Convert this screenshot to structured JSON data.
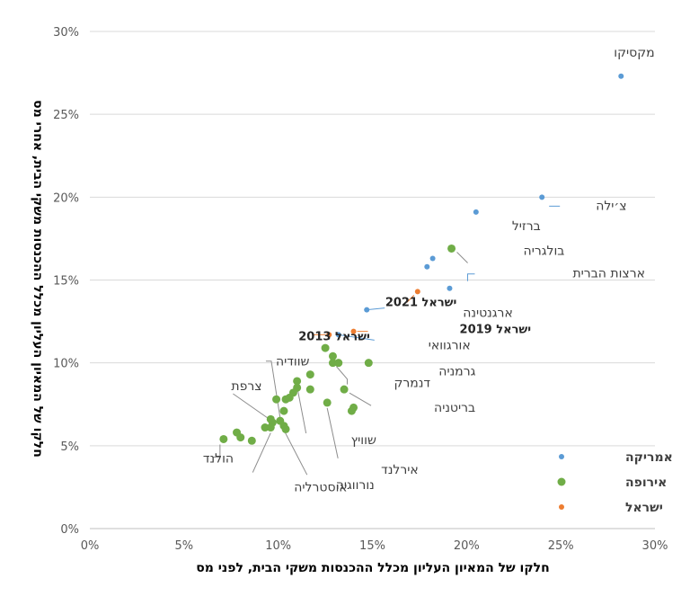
{
  "chart_data": {
    "type": "scatter",
    "xlabel": "חלקו של המאיון העליון מכלל ההכנסות משקי הבית, לפני מס",
    "ylabel": "חלקו של המאיון העליון מכלל ההכנסות משקי הבית, אחרי מס",
    "xlim": [
      0,
      30
    ],
    "ylim": [
      0,
      30
    ],
    "x_ticks": [
      "0%",
      "5%",
      "10%",
      "15%",
      "20%",
      "25%",
      "30%"
    ],
    "y_ticks": [
      "0%",
      "5%",
      "10%",
      "15%",
      "20%",
      "25%",
      "30%"
    ],
    "grid": "horizontal",
    "legend_position": "bottom-right",
    "series": [
      {
        "name": "אמריקה",
        "color": "#5b9bd5",
        "points": [
          {
            "x": 28.2,
            "y": 27.3,
            "label": "מקסיקו"
          },
          {
            "x": 24.0,
            "y": 20.0,
            "label": "צ׳ילה"
          },
          {
            "x": 20.5,
            "y": 19.1,
            "label": "ברזיל"
          },
          {
            "x": 19.1,
            "y": 14.5,
            "label": "ארצות הברית"
          },
          {
            "x": 14.7,
            "y": 13.2,
            "label": "ארגנטינה"
          },
          {
            "x": 13.2,
            "y": 11.7,
            "label": "אורגוואי"
          },
          {
            "x": 18.2,
            "y": 16.3,
            "label": ""
          },
          {
            "x": 17.9,
            "y": 15.8,
            "label": ""
          }
        ]
      },
      {
        "name": "אירופה",
        "color": "#70ad47",
        "points": [
          {
            "x": 19.2,
            "y": 16.9,
            "label": "בולגריה"
          },
          {
            "x": 14.8,
            "y": 10.0,
            "label": "גרמניה"
          },
          {
            "x": 12.9,
            "y": 10.0,
            "label": "דנמרק"
          },
          {
            "x": 13.5,
            "y": 8.4,
            "label": "בריטניה"
          },
          {
            "x": 11.0,
            "y": 8.9,
            "label": "שוויץ"
          },
          {
            "x": 12.6,
            "y": 7.6,
            "label": "אירלנד"
          },
          {
            "x": 10.3,
            "y": 6.2,
            "label": "שוודיה"
          },
          {
            "x": 9.7,
            "y": 6.4,
            "label": "צרפת"
          },
          {
            "x": 7.1,
            "y": 5.4,
            "label": "הולנד"
          },
          {
            "x": 9.6,
            "y": 6.1,
            "label": "אוסטרליה"
          },
          {
            "x": 10.1,
            "y": 6.5,
            "label": "נורווגיה"
          },
          {
            "x": 12.5,
            "y": 10.9,
            "label": ""
          },
          {
            "x": 12.9,
            "y": 10.4,
            "label": ""
          },
          {
            "x": 13.2,
            "y": 10.0,
            "label": ""
          },
          {
            "x": 11.7,
            "y": 9.3,
            "label": ""
          },
          {
            "x": 11.0,
            "y": 8.5,
            "label": ""
          },
          {
            "x": 10.8,
            "y": 8.2,
            "label": ""
          },
          {
            "x": 10.6,
            "y": 7.9,
            "label": ""
          },
          {
            "x": 11.7,
            "y": 8.4,
            "label": ""
          },
          {
            "x": 10.4,
            "y": 7.8,
            "label": ""
          },
          {
            "x": 9.9,
            "y": 7.8,
            "label": ""
          },
          {
            "x": 10.3,
            "y": 7.1,
            "label": ""
          },
          {
            "x": 9.6,
            "y": 6.6,
            "label": ""
          },
          {
            "x": 9.3,
            "y": 6.1,
            "label": ""
          },
          {
            "x": 10.4,
            "y": 6.0,
            "label": ""
          },
          {
            "x": 7.8,
            "y": 5.8,
            "label": ""
          },
          {
            "x": 8.0,
            "y": 5.5,
            "label": ""
          },
          {
            "x": 8.6,
            "y": 5.3,
            "label": ""
          },
          {
            "x": 13.9,
            "y": 7.1,
            "label": ""
          },
          {
            "x": 14.0,
            "y": 7.3,
            "label": ""
          }
        ]
      },
      {
        "name": "ישראל",
        "color": "#ed7d31",
        "points": [
          {
            "x": 17.4,
            "y": 14.3,
            "label": "ישראל 2021"
          },
          {
            "x": 14.0,
            "y": 11.9,
            "label": "ישראל 2019"
          },
          {
            "x": 12.7,
            "y": 11.7,
            "label": "ישראל 2013"
          }
        ]
      }
    ]
  }
}
